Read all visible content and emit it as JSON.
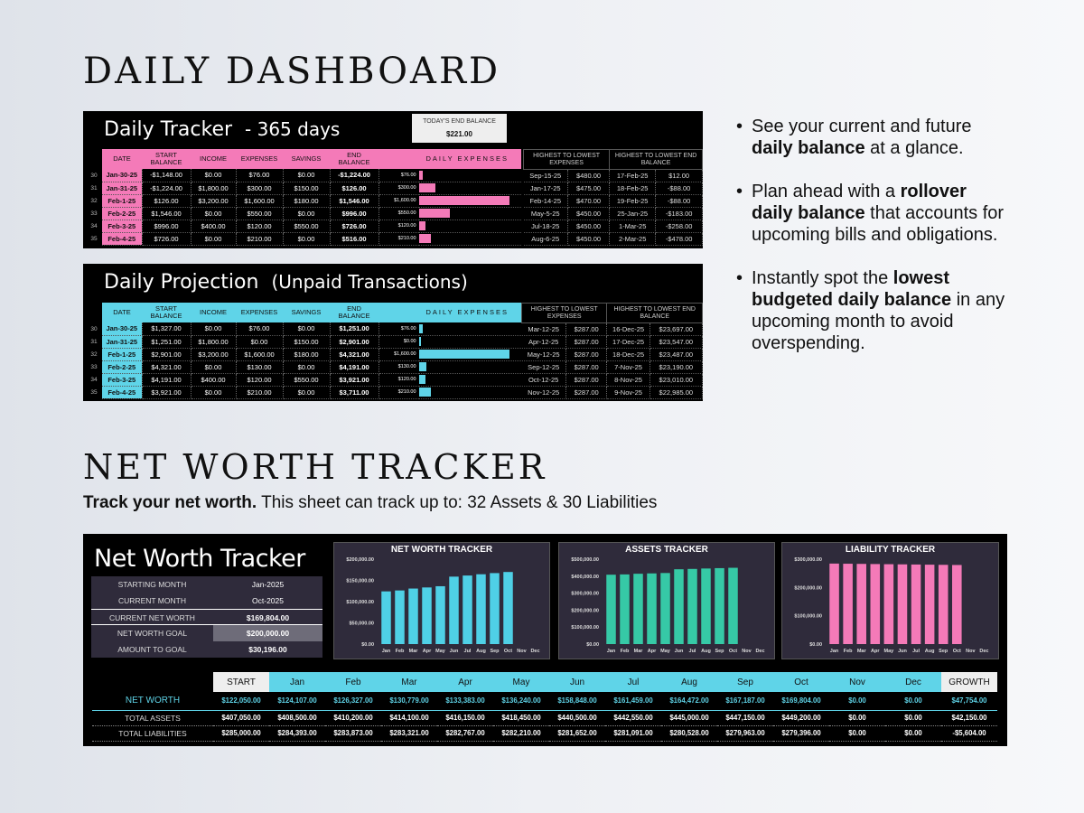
{
  "headings": {
    "daily_dashboard": "DAILY DASHBOARD",
    "net_worth_tracker": "NET WORTH TRACKER",
    "subline_bold": "Track your net worth.",
    "subline_rest": " This sheet can track up to: 32 Assets & 30 Liabilities"
  },
  "bullets": [
    {
      "pre": "See your current and future ",
      "bold": "daily balance",
      "post": " at a glance."
    },
    {
      "pre": "Plan ahead with a ",
      "bold": "rollover daily balance",
      "post": " that accounts for upcoming bills and obligations."
    },
    {
      "pre": "Instantly spot the ",
      "bold": "lowest budgeted daily balance",
      "post": " in any upcoming month to avoid overspending."
    }
  ],
  "tracker": {
    "title": "Daily Tracker",
    "subtitle": "- 365 days",
    "end_balance_label": "TODAY'S END BALANCE",
    "end_balance_value": "$221.00",
    "accent": "#f47ab8",
    "headers": [
      "DATE",
      "START BALANCE",
      "INCOME",
      "EXPENSES",
      "SAVINGS",
      "END BALANCE",
      "DAILY EXPENSES"
    ],
    "rows": [
      {
        "n": "30",
        "date": "Jan-30-25",
        "start": "-$1,148.00",
        "income": "$0.00",
        "exp": "$76.00",
        "sav": "$0.00",
        "end": "-$1,224.00",
        "lbl": "$76.00",
        "bar": 76
      },
      {
        "n": "31",
        "date": "Jan-31-25",
        "start": "-$1,224.00",
        "income": "$1,800.00",
        "exp": "$300.00",
        "sav": "$150.00",
        "end": "$126.00",
        "lbl": "$300.00",
        "bar": 300
      },
      {
        "n": "32",
        "date": "Feb-1-25",
        "start": "$126.00",
        "income": "$3,200.00",
        "exp": "$1,600.00",
        "sav": "$180.00",
        "end": "$1,546.00",
        "lbl": "$1,600.00",
        "bar": 1600
      },
      {
        "n": "33",
        "date": "Feb-2-25",
        "start": "$1,546.00",
        "income": "$0.00",
        "exp": "$550.00",
        "sav": "$0.00",
        "end": "$996.00",
        "lbl": "$550.00",
        "bar": 550
      },
      {
        "n": "34",
        "date": "Feb-3-25",
        "start": "$996.00",
        "income": "$400.00",
        "exp": "$120.00",
        "sav": "$550.00",
        "end": "$726.00",
        "lbl": "$120.00",
        "bar": 120
      },
      {
        "n": "35",
        "date": "Feb-4-25",
        "start": "$726.00",
        "income": "$0.00",
        "exp": "$210.00",
        "sav": "$0.00",
        "end": "$516.00",
        "lbl": "$210.00",
        "bar": 210
      }
    ],
    "hl_headers": [
      "HIGHEST TO LOWEST EXPENSES",
      "HIGHEST TO LOWEST END BALANCE"
    ],
    "hl_rows": [
      [
        "Sep-15-25",
        "$480.00",
        "17-Feb-25",
        "$12.00"
      ],
      [
        "Jan-17-25",
        "$475.00",
        "18-Feb-25",
        "-$88.00"
      ],
      [
        "Feb-14-25",
        "$470.00",
        "19-Feb-25",
        "-$88.00"
      ],
      [
        "May-5-25",
        "$450.00",
        "25-Jan-25",
        "-$183.00"
      ],
      [
        "Jul-18-25",
        "$450.00",
        "1-Mar-25",
        "-$258.00"
      ],
      [
        "Aug-6-25",
        "$450.00",
        "2-Mar-25",
        "-$478.00"
      ]
    ]
  },
  "projection": {
    "title": "Daily Projection",
    "subtitle": "(Unpaid Transactions)",
    "accent": "#5fd4e8",
    "headers": [
      "DATE",
      "START BALANCE",
      "INCOME",
      "EXPENSES",
      "SAVINGS",
      "END BALANCE",
      "DAILY EXPENSES"
    ],
    "rows": [
      {
        "n": "30",
        "date": "Jan-30-25",
        "start": "$1,327.00",
        "income": "$0.00",
        "exp": "$76.00",
        "sav": "$0.00",
        "end": "$1,251.00",
        "lbl": "$76.00",
        "bar": 76
      },
      {
        "n": "31",
        "date": "Jan-31-25",
        "start": "$1,251.00",
        "income": "$1,800.00",
        "exp": "$0.00",
        "sav": "$150.00",
        "end": "$2,901.00",
        "lbl": "$0.00",
        "bar": 0
      },
      {
        "n": "32",
        "date": "Feb-1-25",
        "start": "$2,901.00",
        "income": "$3,200.00",
        "exp": "$1,600.00",
        "sav": "$180.00",
        "end": "$4,321.00",
        "lbl": "$1,600.00",
        "bar": 1600
      },
      {
        "n": "33",
        "date": "Feb-2-25",
        "start": "$4,321.00",
        "income": "$0.00",
        "exp": "$130.00",
        "sav": "$0.00",
        "end": "$4,191.00",
        "lbl": "$130.00",
        "bar": 130
      },
      {
        "n": "34",
        "date": "Feb-3-25",
        "start": "$4,191.00",
        "income": "$400.00",
        "exp": "$120.00",
        "sav": "$550.00",
        "end": "$3,921.00",
        "lbl": "$120.00",
        "bar": 120
      },
      {
        "n": "35",
        "date": "Feb-4-25",
        "start": "$3,921.00",
        "income": "$0.00",
        "exp": "$210.00",
        "sav": "$0.00",
        "end": "$3,711.00",
        "lbl": "$210.00",
        "bar": 210
      }
    ],
    "hl_headers": [
      "HIGHEST TO LOWEST EXPENSES",
      "HIGHEST TO LOWEST END BALANCE"
    ],
    "hl_rows": [
      [
        "Mar-12-25",
        "$287.00",
        "16-Dec-25",
        "$23,697.00"
      ],
      [
        "Apr-12-25",
        "$287.00",
        "17-Dec-25",
        "$23,547.00"
      ],
      [
        "May-12-25",
        "$287.00",
        "18-Dec-25",
        "$23,487.00"
      ],
      [
        "Sep-12-25",
        "$287.00",
        "7-Nov-25",
        "$23,190.00"
      ],
      [
        "Oct-12-25",
        "$287.00",
        "8-Nov-25",
        "$23,010.00"
      ],
      [
        "Nov-12-25",
        "$287.00",
        "9-Nov-25",
        "$22,985.00"
      ]
    ]
  },
  "networth": {
    "title": "Net Worth Tracker",
    "summary": [
      {
        "k": "STARTING MONTH",
        "v": "Jan-2025"
      },
      {
        "k": "CURRENT MONTH",
        "v": "Oct-2025"
      },
      {
        "k": "CURRENT NET WORTH",
        "v": "$169,804.00"
      },
      {
        "k": "NET WORTH GOAL",
        "v": "$200,000.00"
      },
      {
        "k": "AMOUNT TO GOAL",
        "v": "$30,196.00"
      }
    ],
    "table_headers": [
      "START",
      "Jan",
      "Feb",
      "Mar",
      "Apr",
      "May",
      "Jun",
      "Jul",
      "Aug",
      "Sep",
      "Oct",
      "Nov",
      "Dec",
      "GROWTH"
    ],
    "table_rows": [
      {
        "label": "NET WORTH",
        "cells": [
          "$122,050.00",
          "$124,107.00",
          "$126,327.00",
          "$130,779.00",
          "$133,383.00",
          "$136,240.00",
          "$158,848.00",
          "$161,459.00",
          "$164,472.00",
          "$167,187.00",
          "$169,804.00",
          "$0.00",
          "$0.00",
          "$47,754.00"
        ]
      },
      {
        "label": "TOTAL ASSETS",
        "cells": [
          "$407,050.00",
          "$408,500.00",
          "$410,200.00",
          "$414,100.00",
          "$416,150.00",
          "$418,450.00",
          "$440,500.00",
          "$442,550.00",
          "$445,000.00",
          "$447,150.00",
          "$449,200.00",
          "$0.00",
          "$0.00",
          "$42,150.00"
        ]
      },
      {
        "label": "TOTAL LIABILITIES",
        "cells": [
          "$285,000.00",
          "$284,393.00",
          "$283,873.00",
          "$283,321.00",
          "$282,767.00",
          "$282,210.00",
          "$281,652.00",
          "$281,091.00",
          "$280,528.00",
          "$279,963.00",
          "$279,396.00",
          "$0.00",
          "$0.00",
          "-$5,604.00"
        ]
      }
    ]
  },
  "chart_data": [
    {
      "type": "bar",
      "title": "NET WORTH TRACKER",
      "categories": [
        "Jan",
        "Feb",
        "Mar",
        "Apr",
        "May",
        "Jun",
        "Jul",
        "Aug",
        "Sep",
        "Oct",
        "Nov",
        "Dec"
      ],
      "values": [
        124107,
        126327,
        130779,
        133383,
        136240,
        158848,
        161459,
        164472,
        167187,
        169804,
        0,
        0
      ],
      "ylim": [
        0,
        200000
      ],
      "yticks": [
        "$0.00",
        "$50,000.00",
        "$100,000.00",
        "$150,000.00",
        "$200,000.00"
      ],
      "color": "#4fd0e6"
    },
    {
      "type": "bar",
      "title": "ASSETS TRACKER",
      "categories": [
        "Jan",
        "Feb",
        "Mar",
        "Apr",
        "May",
        "Jun",
        "Jul",
        "Aug",
        "Sep",
        "Oct",
        "Nov",
        "Dec"
      ],
      "values": [
        408500,
        410200,
        414100,
        416150,
        418450,
        440500,
        442550,
        445000,
        447150,
        449200,
        0,
        0
      ],
      "ylim": [
        0,
        500000
      ],
      "yticks": [
        "$0.00",
        "$100,000.00",
        "$200,000.00",
        "$300,000.00",
        "$400,000.00",
        "$500,000.00"
      ],
      "color": "#36c9a6"
    },
    {
      "type": "bar",
      "title": "LIABILITY TRACKER",
      "categories": [
        "Jan",
        "Feb",
        "Mar",
        "Apr",
        "May",
        "Jun",
        "Jul",
        "Aug",
        "Sep",
        "Oct",
        "Nov",
        "Dec"
      ],
      "values": [
        284393,
        283873,
        283321,
        282767,
        282210,
        281652,
        281091,
        280528,
        279963,
        279396,
        0,
        0
      ],
      "ylim": [
        0,
        300000
      ],
      "yticks": [
        "$0.00",
        "$100,000.00",
        "$200,000.00",
        "$300,000.00"
      ],
      "color": "#f47ab8"
    }
  ]
}
